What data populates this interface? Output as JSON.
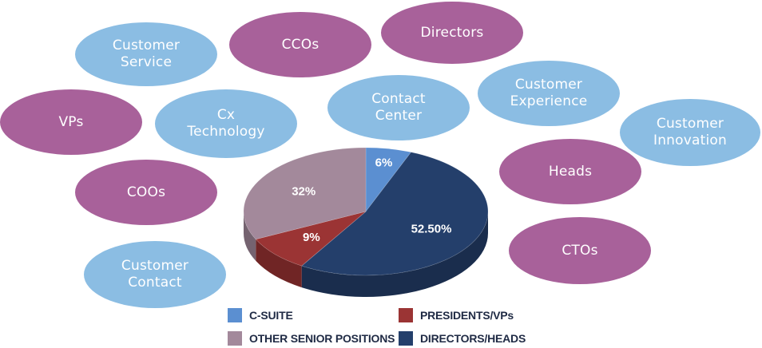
{
  "bubbles": [
    {
      "id": "customer-service",
      "label": "Customer\nService",
      "color": "blue"
    },
    {
      "id": "ccos",
      "label": "CCOs",
      "color": "purple"
    },
    {
      "id": "directors",
      "label": "Directors",
      "color": "purple"
    },
    {
      "id": "vps",
      "label": "VPs",
      "color": "purple"
    },
    {
      "id": "cx-technology",
      "label": "Cx\nTechnology",
      "color": "blue"
    },
    {
      "id": "contact-center",
      "label": "Contact\nCenter",
      "color": "blue"
    },
    {
      "id": "customer-experience",
      "label": "Customer\nExperience",
      "color": "blue"
    },
    {
      "id": "customer-innovation",
      "label": "Customer\nInnovation",
      "color": "blue"
    },
    {
      "id": "heads",
      "label": "Heads",
      "color": "purple"
    },
    {
      "id": "coos",
      "label": "COOs",
      "color": "purple"
    },
    {
      "id": "ctos",
      "label": "CTOs",
      "color": "purple"
    },
    {
      "id": "customer-contact",
      "label": "Customer\nContact",
      "color": "blue"
    }
  ],
  "colors": {
    "purple": "#a8619a",
    "blue": "#8bbde3"
  },
  "chart_data": {
    "type": "pie",
    "style": "3d",
    "title": "",
    "slices": [
      {
        "name": "C-SUITE",
        "value": 6,
        "label": "6%",
        "color": "#5b8fd1"
      },
      {
        "name": "DIRECTORS/HEADS",
        "value": 52.5,
        "label": "52.50%",
        "color": "#243f6b"
      },
      {
        "name": "PRESIDENTS/VPs",
        "value": 9,
        "label": "9%",
        "color": "#9b3434"
      },
      {
        "name": "OTHER SENIOR POSITIONS",
        "value": 32,
        "label": "32%",
        "color": "#a3899b"
      }
    ],
    "legend": {
      "placement": "bottom",
      "items": [
        {
          "name": "C-SUITE",
          "color": "#5b8fd1"
        },
        {
          "name": "PRESIDENTS/VPs",
          "color": "#9b3434"
        },
        {
          "name": "OTHER SENIOR POSITIONS",
          "color": "#a3899b"
        },
        {
          "name": "DIRECTORS/HEADS",
          "color": "#243f6b"
        }
      ]
    }
  }
}
